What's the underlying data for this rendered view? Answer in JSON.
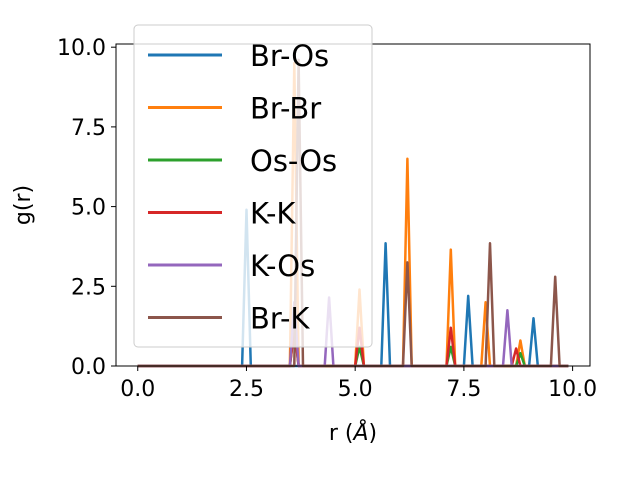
{
  "chart_data": {
    "type": "line",
    "xlabel": "r (",
    "xlabel_symbol": "Å",
    "xlabel_close": ")",
    "ylabel": "g(r)",
    "xlim": [
      -0.5,
      10.4
    ],
    "ylim": [
      0,
      10.1
    ],
    "xticks": [
      0.0,
      2.5,
      5.0,
      7.5,
      10.0
    ],
    "xtick_labels": [
      "0.0",
      "2.5",
      "5.0",
      "7.5",
      "10.0"
    ],
    "yticks": [
      0.0,
      2.5,
      5.0,
      7.5,
      10.0
    ],
    "ytick_labels": [
      "0.0",
      "2.5",
      "5.0",
      "7.5",
      "10.0"
    ],
    "grid": false,
    "legend_position": "upper-left",
    "x_range": [
      0.0,
      9.9
    ],
    "series": [
      {
        "name": "Br-Os",
        "color": "#1f77b4",
        "peaks": [
          [
            2.5,
            4.9
          ],
          [
            5.7,
            3.85
          ],
          [
            7.6,
            2.2
          ],
          [
            9.1,
            1.5
          ]
        ]
      },
      {
        "name": "Br-Br",
        "color": "#ff7f0e",
        "peaks": [
          [
            3.6,
            9.5
          ],
          [
            5.1,
            2.4
          ],
          [
            6.2,
            6.5
          ],
          [
            7.2,
            3.65
          ],
          [
            8.0,
            2.0
          ],
          [
            8.8,
            0.8
          ]
        ]
      },
      {
        "name": "Os-Os",
        "color": "#2ca02c",
        "peaks": [
          [
            3.6,
            1.2
          ],
          [
            5.1,
            0.6
          ],
          [
            7.2,
            0.6
          ],
          [
            8.8,
            0.4
          ]
        ]
      },
      {
        "name": "K-K",
        "color": "#d62728",
        "peaks": [
          [
            3.6,
            1.2
          ],
          [
            5.1,
            1.2
          ],
          [
            7.2,
            1.2
          ],
          [
            8.7,
            0.55
          ]
        ]
      },
      {
        "name": "K-Os",
        "color": "#9467bd",
        "peaks": [
          [
            3.6,
            2.0
          ],
          [
            4.4,
            2.15
          ],
          [
            8.5,
            1.75
          ]
        ]
      },
      {
        "name": "Br-K",
        "color": "#8c564b",
        "peaks": [
          [
            3.7,
            9.6
          ],
          [
            6.2,
            3.25
          ],
          [
            8.1,
            3.85
          ],
          [
            9.6,
            2.8
          ]
        ]
      }
    ]
  }
}
